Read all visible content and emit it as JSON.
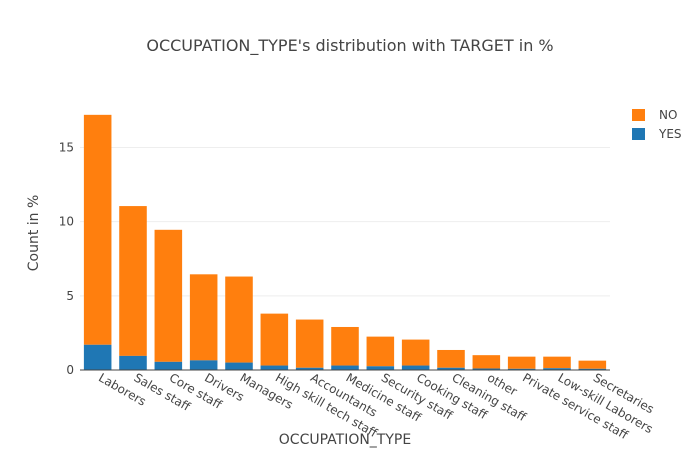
{
  "chart_data": {
    "type": "bar",
    "stacked": true,
    "title": "OCCUPATION_TYPE's distribution with TARGET in %",
    "xlabel": "OCCUPATION_TYPE",
    "ylabel": "Count in %",
    "ylim": [
      0,
      18.2
    ],
    "yticks": [
      0,
      5,
      10,
      15
    ],
    "grid": true,
    "legend_position": "top-right",
    "categories": [
      "Laborers",
      "Sales staff",
      "Core staff",
      "Drivers",
      "Managers",
      "High skill tech staff",
      "Accountants",
      "Medicine staff",
      "Security staff",
      "Cooking staff",
      "Cleaning staff",
      "other",
      "Private service staff",
      "Low-skill Laborers",
      "Secretaries"
    ],
    "series": [
      {
        "name": "NO",
        "color": "#ff7f0e",
        "values": [
          15.5,
          10.1,
          8.9,
          5.8,
          5.8,
          3.5,
          3.25,
          2.6,
          2.0,
          1.75,
          1.2,
          0.9,
          0.82,
          0.78,
          0.55
        ]
      },
      {
        "name": "YES",
        "color": "#1f77b4",
        "values": [
          1.7,
          0.95,
          0.55,
          0.65,
          0.5,
          0.3,
          0.15,
          0.3,
          0.25,
          0.3,
          0.15,
          0.1,
          0.08,
          0.12,
          0.08
        ]
      }
    ]
  }
}
